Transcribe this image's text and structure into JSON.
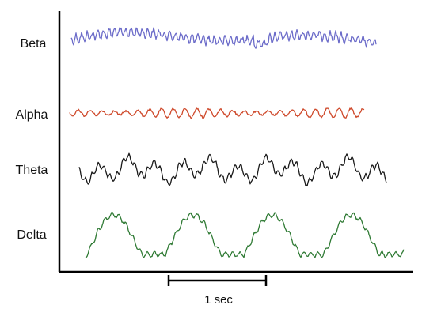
{
  "labels": [
    "Beta",
    "Alpha",
    "Theta",
    "Delta"
  ],
  "scale_bar": "1 sec"
}
